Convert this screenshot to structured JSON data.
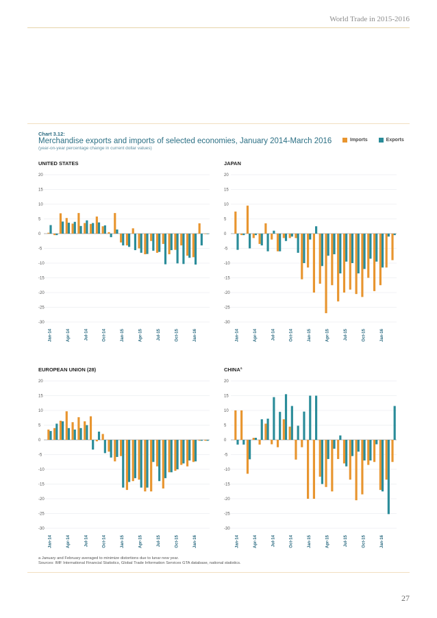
{
  "page": {
    "header": "World Trade in 2015-2016",
    "page_number": "27"
  },
  "chart_block": {
    "label": "Chart 3.12:",
    "title": "Merchandise exports and imports of selected economies, January 2014-March 2016",
    "subtitle": "(year-on-year percentage change in current dollar values)",
    "legend": [
      {
        "name": "Imports",
        "color": "#e8952f"
      },
      {
        "name": "Exports",
        "color": "#2a8c99"
      }
    ],
    "footnote_a": "a January and February averaged to minimize distortions due to lunar new year.",
    "sources": "Sources: IMF International Financial Statistics, Global Trade Information Services GTA database, national statistics."
  },
  "chart_data": [
    {
      "type": "bar",
      "title": "UNITED STATES",
      "categories": [
        "Jan-14",
        "Feb-14",
        "Mar-14",
        "Apr-14",
        "May-14",
        "Jun-14",
        "Jul-14",
        "Aug-14",
        "Sep-14",
        "Oct-14",
        "Nov-14",
        "Dec-14",
        "Jan-15",
        "Feb-15",
        "Mar-15",
        "Apr-15",
        "May-15",
        "Jun-15",
        "Jul-15",
        "Aug-15",
        "Sep-15",
        "Oct-15",
        "Nov-15",
        "Dec-15",
        "Jan-16",
        "Feb-16",
        "Mar-16"
      ],
      "tick_labels": [
        "Jan-14",
        "Apr-14",
        "Jul-14",
        "Oct-14",
        "Jan-15",
        "Apr-15",
        "Jul-15",
        "Oct-15",
        "Jan-16"
      ],
      "ylim": [
        -30,
        20
      ],
      "yticks": [
        20,
        15,
        10,
        5,
        0,
        -5,
        -10,
        -15,
        -20,
        -25,
        -30
      ],
      "series": [
        {
          "name": "Imports",
          "values": [
            0.3,
            -0.5,
            6.9,
            5.3,
            3.4,
            7.0,
            3.6,
            3.3,
            5.8,
            2.5,
            0.5,
            7.0,
            -3.0,
            -4.0,
            1.8,
            -5.0,
            -7.0,
            -2.5,
            -6.5,
            -3.5,
            -7.0,
            -5.5,
            -4.0,
            -7.5,
            -8.0,
            3.5,
            0.0
          ]
        },
        {
          "name": "Exports",
          "values": [
            2.9,
            -0.5,
            4.1,
            3.7,
            4.0,
            2.6,
            4.5,
            3.6,
            3.8,
            2.8,
            -1.2,
            1.4,
            -4.0,
            -4.5,
            -5.6,
            -6.5,
            -6.9,
            -5.8,
            -6.2,
            -10.4,
            -5.6,
            -10.1,
            -10.3,
            -8.2,
            -10.5,
            -4.0,
            0.0
          ]
        }
      ]
    },
    {
      "type": "bar",
      "title": "JAPAN",
      "categories": [
        "Jan-14",
        "Feb-14",
        "Mar-14",
        "Apr-14",
        "May-14",
        "Jun-14",
        "Jul-14",
        "Aug-14",
        "Sep-14",
        "Oct-14",
        "Nov-14",
        "Dec-14",
        "Jan-15",
        "Feb-15",
        "Mar-15",
        "Apr-15",
        "May-15",
        "Jun-15",
        "Jul-15",
        "Aug-15",
        "Sep-15",
        "Oct-15",
        "Nov-15",
        "Dec-15",
        "Jan-16",
        "Feb-16",
        "Mar-16"
      ],
      "tick_labels": [
        "Jan-14",
        "Apr-14",
        "Jul-14",
        "Oct-14",
        "Jan-15",
        "Apr-15",
        "Jul-15",
        "Oct-15",
        "Jan-16"
      ],
      "ylim": [
        -30,
        20
      ],
      "yticks": [
        20,
        15,
        10,
        5,
        0,
        -5,
        -10,
        -15,
        -20,
        -25,
        -30
      ],
      "series": [
        {
          "name": "Imports",
          "values": [
            7.5,
            -0.5,
            9.5,
            -1.5,
            -3.5,
            3.5,
            -2.0,
            -6.0,
            -1.5,
            -1.5,
            -1.5,
            -15.5,
            -11.5,
            -20.0,
            -17.0,
            -27.0,
            -17.5,
            -23.0,
            -20.0,
            -19.0,
            -20.5,
            -21.5,
            -15.0,
            -19.5,
            -17.5,
            -11.5,
            -9.0
          ]
        },
        {
          "name": "Exports",
          "values": [
            -5.5,
            -0.5,
            -5.0,
            -0.5,
            -4.0,
            -6.0,
            1.0,
            -6.0,
            -2.5,
            -1.0,
            -6.5,
            -10.0,
            -2.0,
            2.5,
            -11.0,
            -7.5,
            -7.0,
            -13.5,
            -9.5,
            -10.0,
            -13.5,
            -12.0,
            -8.5,
            -9.5,
            -11.5,
            -1.0,
            -0.5
          ]
        }
      ]
    },
    {
      "type": "bar",
      "title": "EUROPEAN UNION (28)",
      "categories": [
        "Jan-14",
        "Feb-14",
        "Mar-14",
        "Apr-14",
        "May-14",
        "Jun-14",
        "Jul-14",
        "Aug-14",
        "Sep-14",
        "Oct-14",
        "Nov-14",
        "Dec-14",
        "Jan-15",
        "Feb-15",
        "Mar-15",
        "Apr-15",
        "May-15",
        "Jun-15",
        "Jul-15",
        "Aug-15",
        "Sep-15",
        "Oct-15",
        "Nov-15",
        "Dec-15",
        "Jan-16",
        "Feb-16",
        "Mar-16"
      ],
      "tick_labels": [
        "Jan-14",
        "Apr-14",
        "Jul-14",
        "Oct-14",
        "Jan-15",
        "Apr-15",
        "Jul-15",
        "Oct-15",
        "Jan-16"
      ],
      "ylim": [
        -30,
        20
      ],
      "yticks": [
        20,
        15,
        10,
        5,
        0,
        -5,
        -10,
        -15,
        -20,
        -25,
        -30
      ],
      "series": [
        {
          "name": "Imports",
          "values": [
            3.5,
            4.0,
            6.5,
            9.7,
            6.0,
            7.7,
            6.3,
            8.0,
            -0.5,
            2.0,
            -4.0,
            -7.3,
            -5.5,
            -17.0,
            -14.0,
            -13.5,
            -17.5,
            -17.5,
            -9.0,
            -16.5,
            -11.0,
            -10.5,
            -8.5,
            -9.0,
            -7.5,
            -0.3,
            -0.3
          ]
        },
        {
          "name": "Exports",
          "values": [
            3.0,
            5.5,
            6.3,
            4.0,
            3.5,
            4.0,
            5.0,
            -3.3,
            2.8,
            -4.5,
            -6.0,
            -5.8,
            -16.2,
            -14.3,
            -13.0,
            -16.2,
            -16.2,
            -7.5,
            -14.0,
            -13.0,
            -11.0,
            -10.0,
            -8.0,
            -7.0,
            -7.3,
            -0.3,
            -0.3
          ]
        }
      ]
    },
    {
      "type": "bar",
      "title": "CHINA",
      "title_note": "a",
      "categories": [
        "Jan-14",
        "Feb-14",
        "Mar-14",
        "Apr-14",
        "May-14",
        "Jun-14",
        "Jul-14",
        "Aug-14",
        "Sep-14",
        "Oct-14",
        "Nov-14",
        "Dec-14",
        "Jan-15",
        "Feb-15",
        "Mar-15",
        "Apr-15",
        "May-15",
        "Jun-15",
        "Jul-15",
        "Aug-15",
        "Sep-15",
        "Oct-15",
        "Nov-15",
        "Dec-15",
        "Jan-16",
        "Feb-16",
        "Mar-16"
      ],
      "tick_labels": [
        "Jan-14",
        "Apr-14",
        "Jul-14",
        "Oct-14",
        "Jan-15",
        "Apr-15",
        "Jul-15",
        "Oct-15",
        "Jan-16"
      ],
      "ylim": [
        -30,
        20
      ],
      "yticks": [
        20,
        15,
        10,
        5,
        0,
        -5,
        -10,
        -15,
        -20,
        -25,
        -30
      ],
      "series": [
        {
          "name": "Imports",
          "values": [
            10.0,
            10.0,
            -11.5,
            0.7,
            -1.6,
            5.5,
            -1.5,
            -2.5,
            7.0,
            4.5,
            -6.7,
            -2.5,
            -20.0,
            -20.0,
            -12.5,
            -16.0,
            -17.5,
            -6.5,
            -8.0,
            -13.5,
            -20.5,
            -18.5,
            -8.5,
            -7.5,
            -17.0,
            -13.5,
            -7.5
          ]
        },
        {
          "name": "Exports",
          "values": [
            -1.6,
            -1.6,
            -6.6,
            0.7,
            7.0,
            7.2,
            14.5,
            9.5,
            15.5,
            11.5,
            4.8,
            9.6,
            15.0,
            15.0,
            -15.0,
            -6.5,
            -3.0,
            1.5,
            -9.0,
            -5.5,
            -4.0,
            -7.0,
            -7.0,
            -1.5,
            -17.5,
            -25.2,
            11.5
          ]
        }
      ]
    }
  ]
}
